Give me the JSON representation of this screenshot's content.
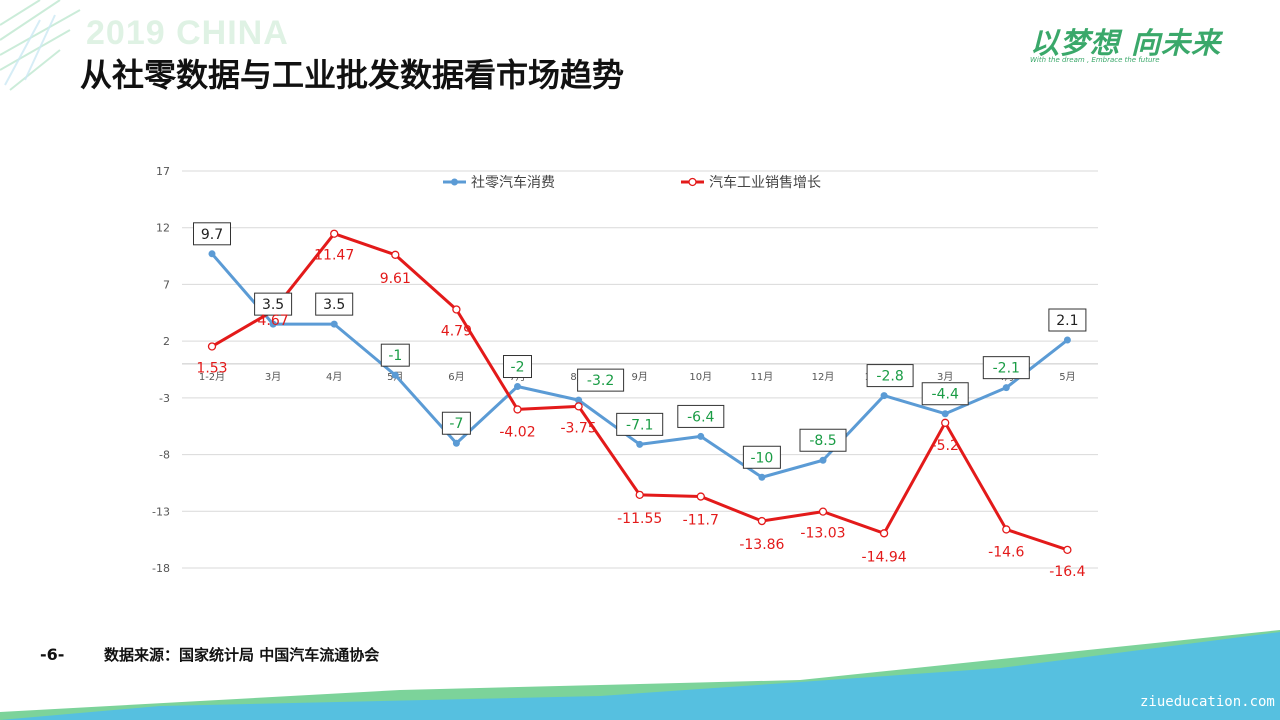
{
  "header": {
    "banner_text": "2019 CHINA",
    "title": "从社零数据与工业批发数据看市场趋势",
    "logo_text": "以梦想 向未来",
    "logo_subtitle": "With the dream , Embrace the future"
  },
  "footer": {
    "page_number": "-6-",
    "source": "数据来源：国家统计局 中国汽车流通协会",
    "watermark": "ziueducation.com"
  },
  "colors": {
    "series1": "#5b9bd5",
    "series2": "#e31a1a",
    "positive_label": "#222222",
    "negative_label": "#1a9c45",
    "decor_blue": "#56c0e0",
    "decor_green": "#7cd39a"
  },
  "chart_data": {
    "type": "line",
    "categories": [
      "1-2月",
      "3月",
      "4月",
      "5月",
      "6月",
      "7月",
      "8月",
      "9月",
      "10月",
      "11月",
      "12月",
      "1-2月19",
      "3月",
      "4月",
      "5月"
    ],
    "y_ticks": [
      "17",
      "12",
      "7",
      "2",
      "-3",
      "-8",
      "-13",
      "-18"
    ],
    "ylim": [
      -18,
      17
    ],
    "grid": true,
    "legend_position": "top",
    "series": [
      {
        "name": "社零汽车消费",
        "values": [
          9.7,
          3.5,
          3.5,
          -1,
          -7,
          -2,
          -3.2,
          -7.1,
          -6.4,
          -10,
          -8.5,
          -2.8,
          -4.4,
          -2.1,
          2.1
        ],
        "labels": [
          "9.7",
          "3.5",
          "3.5",
          "-1",
          "-7",
          "-2",
          "-3.2",
          "-7.1",
          "-6.4",
          "-10",
          "-8.5",
          "-2.8",
          "-4.4",
          "-2.1",
          "2.1"
        ]
      },
      {
        "name": "汽车工业销售增长",
        "values": [
          1.53,
          4.67,
          11.47,
          9.61,
          4.79,
          -4.02,
          -3.75,
          -11.55,
          -11.7,
          -13.86,
          -13.03,
          -14.94,
          -5.2,
          -14.6,
          -16.4
        ],
        "labels": [
          "1.53",
          "4.67",
          "11.47",
          "9.61",
          "4.79",
          "-4.02",
          "-3.75",
          "-11.55",
          "-11.7",
          "-13.86",
          "-13.03",
          "-14.94",
          "-5.2",
          "-14.6",
          "-16.4"
        ]
      }
    ]
  }
}
